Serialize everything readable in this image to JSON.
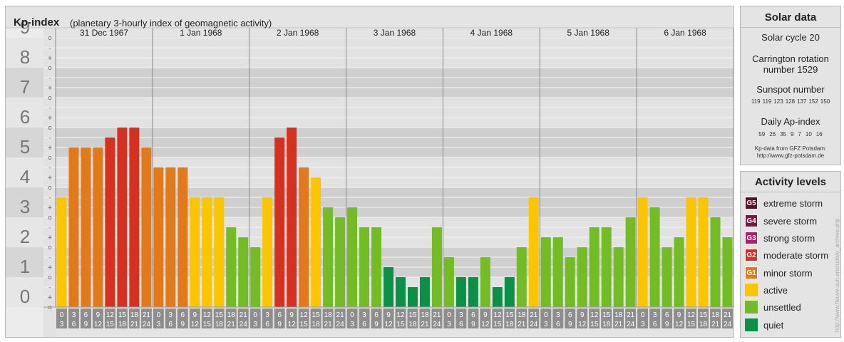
{
  "header": {
    "title": "Kp-index",
    "subtitle": "(planetary 3-hourly index of geomagnetic activity)"
  },
  "chart_data": {
    "type": "bar",
    "title": "Kp-index",
    "ylim": [
      0,
      9
    ],
    "y_ticks": [
      "0",
      "1",
      "2",
      "3",
      "4",
      "5",
      "6",
      "7",
      "8",
      "9"
    ],
    "y_minor_marks": [
      "o",
      "+",
      "-"
    ],
    "days": [
      "31 Dec 1967",
      "1 Jan 1968",
      "2 Jan 1968",
      "3 Jan 1968",
      "4 Jan 1968",
      "5 Jan 1968",
      "6 Jan 1968"
    ],
    "interval_starts": [
      "0",
      "3",
      "6",
      "9",
      "12",
      "15",
      "18",
      "21"
    ],
    "interval_ends": [
      "3",
      "6",
      "9",
      "12",
      "15",
      "18",
      "21",
      "24"
    ],
    "values": [
      [
        3.667,
        5.333,
        5.333,
        5.333,
        5.667,
        6.0,
        6.0,
        5.333
      ],
      [
        4.667,
        4.667,
        4.667,
        3.667,
        3.667,
        3.667,
        2.667,
        2.333
      ],
      [
        2.0,
        3.667,
        5.667,
        6.0,
        4.667,
        4.333,
        3.333,
        3.0
      ],
      [
        3.333,
        2.667,
        2.667,
        1.333,
        1.0,
        0.667,
        1.0,
        2.667
      ],
      [
        1.667,
        1.0,
        1.0,
        1.667,
        0.667,
        1.0,
        2.0,
        3.667
      ],
      [
        2.333,
        2.333,
        1.667,
        2.0,
        2.667,
        2.667,
        2.0,
        3.0
      ],
      [
        3.667,
        3.333,
        2.0,
        2.333,
        3.667,
        3.667,
        3.0,
        2.333
      ]
    ],
    "level_colors": {
      "quiet": "#0c9047",
      "unsettled": "#73bc25",
      "active": "#fbc600",
      "minor_storm": "#e27a1c",
      "moderate_storm": "#d43120"
    }
  },
  "solar": {
    "title": "Solar data",
    "cycle": "Solar cycle 20",
    "carrington_line1": "Carrington rotation",
    "carrington_line2": "number 1529",
    "sunspot_title": "Sunspot number",
    "sunspots": [
      "119",
      "119",
      "123",
      "128",
      "137",
      "152",
      "150"
    ],
    "ap_title": "Daily Ap-index",
    "ap": [
      "59",
      "26",
      "35",
      "9",
      "7",
      "10",
      "16"
    ],
    "source_line1": "Kp-data from GFZ Potsdam:",
    "source_line2": "http://www.gfz-potsdam.de"
  },
  "activity": {
    "title": "Activity levels",
    "items": [
      {
        "code": "G5",
        "label": "extreme storm",
        "color": "#5a0f26"
      },
      {
        "code": "G4",
        "label": "severe storm",
        "color": "#7e1442"
      },
      {
        "code": "G3",
        "label": "strong storm",
        "color": "#b8196d"
      },
      {
        "code": "G2",
        "label": "moderate storm",
        "color": "#d43120"
      },
      {
        "code": "G1",
        "label": "minor storm",
        "color": "#e27a1c"
      },
      {
        "code": "",
        "label": "active",
        "color": "#fbc600"
      },
      {
        "code": "",
        "label": "unsettled",
        "color": "#73bc25"
      },
      {
        "code": "",
        "label": "quiet",
        "color": "#0c9047"
      }
    ]
  },
  "credit": "http://www.fleuve-sun.ericrude/o_archive.php"
}
